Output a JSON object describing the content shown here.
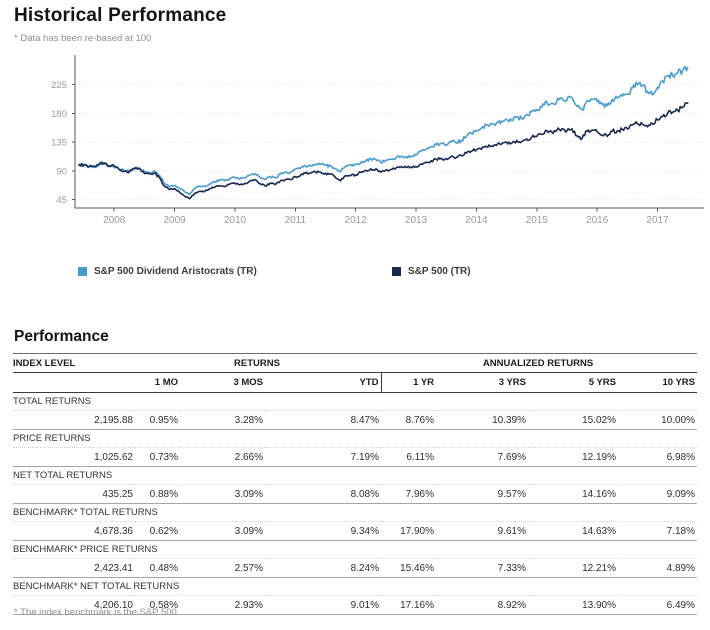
{
  "page": {
    "title": "Historical Performance",
    "subtitle": "* Data has been re-based at 100"
  },
  "chart_data": {
    "type": "line",
    "title": "Historical Performance",
    "note": "* Data has been re-based at 100",
    "xlabel": "",
    "ylabel": "",
    "grid": "horizontal-dotted",
    "legend_position": "bottom",
    "x_start": 2007.4167,
    "x_step": 0.0833333,
    "xlim": [
      2007.35,
      2017.77
    ],
    "ylim": [
      32,
      271.5
    ],
    "y_ticks": [
      45,
      90,
      135,
      180,
      225
    ],
    "x_ticks": [
      2008,
      2009,
      2010,
      2011,
      2012,
      2013,
      2014,
      2015,
      2016,
      2017
    ],
    "axis_color": "#555555",
    "tick_label_color": "#9a9a9a",
    "gridline_color": "#dedede",
    "series": [
      {
        "name": "S&P 500 Dividend Aristocrats (TR)",
        "color": "#4A9CCB",
        "values": [
          100,
          99.5,
          96.5,
          97,
          99.5,
          100.5,
          97,
          96.5,
          92.5,
          90,
          89.5,
          94,
          95,
          88,
          87.5,
          89.5,
          83,
          70,
          65.5,
          67.5,
          63,
          57,
          53.5,
          62.5,
          66,
          65.5,
          70,
          73,
          76,
          74.5,
          77.5,
          79.5,
          77.5,
          79.5,
          83.5,
          85.5,
          79.5,
          76.5,
          81.5,
          79,
          85,
          88,
          88,
          92.5,
          94,
          97.5,
          98,
          100.5,
          100.5,
          99,
          97.5,
          93,
          89,
          97.5,
          98.5,
          100.5,
          103,
          106,
          109,
          108,
          103,
          107,
          108.5,
          110.5,
          113,
          112,
          113,
          115.5,
          121,
          124,
          128,
          131,
          133,
          131,
          137,
          134,
          138,
          144,
          149,
          153,
          157,
          162,
          164,
          165,
          168,
          171,
          169,
          175,
          172,
          178,
          183,
          186,
          190,
          198,
          196,
          200,
          204,
          201,
          205,
          191,
          186,
          200,
          202,
          199,
          194,
          192,
          202,
          204,
          207,
          210,
          220,
          225,
          223,
          215,
          209,
          221,
          231,
          238,
          240,
          243,
          247,
          252
        ]
      },
      {
        "name": "S&P 500 (TR)",
        "color": "#1A2A4E",
        "values": [
          100,
          99,
          96.5,
          97.5,
          100.5,
          102.5,
          98,
          97.5,
          92,
          89,
          88.5,
          93,
          94,
          86,
          85.5,
          87,
          79,
          66,
          61,
          62.5,
          56.5,
          50.5,
          46.5,
          55,
          58,
          58,
          62.5,
          64.5,
          67,
          65.5,
          69.5,
          71,
          68.5,
          70.5,
          74.5,
          76,
          70,
          66.5,
          71,
          68.5,
          74,
          76.5,
          76.5,
          81,
          83,
          86.5,
          86.5,
          89,
          88,
          86.5,
          85,
          79.5,
          74.5,
          82.5,
          82.5,
          84,
          87.5,
          91,
          93.5,
          93,
          88,
          91.5,
          92.5,
          94.5,
          97,
          95.5,
          96,
          97,
          101,
          103,
          106,
          108,
          110,
          109,
          113,
          111,
          114,
          118,
          121,
          123,
          124,
          128,
          129,
          130,
          132,
          135,
          133,
          138,
          136,
          140,
          143,
          144,
          147,
          153,
          151,
          154,
          156,
          153,
          156,
          145,
          141,
          152,
          154,
          151,
          146,
          144,
          152,
          153,
          155,
          156,
          162,
          164,
          163,
          159,
          164,
          170,
          175,
          180,
          182,
          185,
          190,
          196
        ]
      }
    ]
  },
  "performance": {
    "heading": "Performance",
    "footnote": "* The index benchmark is the S&P 500",
    "table": {
      "group_headers": {
        "col1": "INDEX LEVEL",
        "returns": "RETURNS",
        "annualized": "ANNUALIZED RETURNS"
      },
      "column_headers": [
        "",
        "1 MO",
        "3 MOS",
        "YTD",
        "1 YR",
        "3 YRS",
        "5 YRS",
        "10 YRS"
      ],
      "sections": [
        {
          "label": "TOTAL RETURNS",
          "values": [
            "2,195.88",
            "0.95%",
            "3.28%",
            "8.47%",
            "8.76%",
            "10.39%",
            "15.02%",
            "10.00%"
          ]
        },
        {
          "label": "PRICE RETURNS",
          "values": [
            "1,025.62",
            "0.73%",
            "2.66%",
            "7.19%",
            "6.11%",
            "7.69%",
            "12.19%",
            "6.98%"
          ]
        },
        {
          "label": "NET TOTAL RETURNS",
          "values": [
            "435.25",
            "0.88%",
            "3.09%",
            "8.08%",
            "7.96%",
            "9.57%",
            "14.16%",
            "9.09%"
          ]
        },
        {
          "label": "BENCHMARK* TOTAL RETURNS",
          "values": [
            "4,678.36",
            "0.62%",
            "3.09%",
            "9.34%",
            "17.90%",
            "9.61%",
            "14.63%",
            "7.18%"
          ]
        },
        {
          "label": "BENCHMARK* PRICE RETURNS",
          "values": [
            "2,423.41",
            "0.48%",
            "2.57%",
            "8.24%",
            "15.46%",
            "7.33%",
            "12.21%",
            "4.89%"
          ]
        },
        {
          "label": "BENCHMARK* NET TOTAL RETURNS",
          "values": [
            "4,206.10",
            "0.58%",
            "2.93%",
            "9.01%",
            "17.16%",
            "8.92%",
            "13.90%",
            "6.49%"
          ]
        }
      ]
    }
  }
}
